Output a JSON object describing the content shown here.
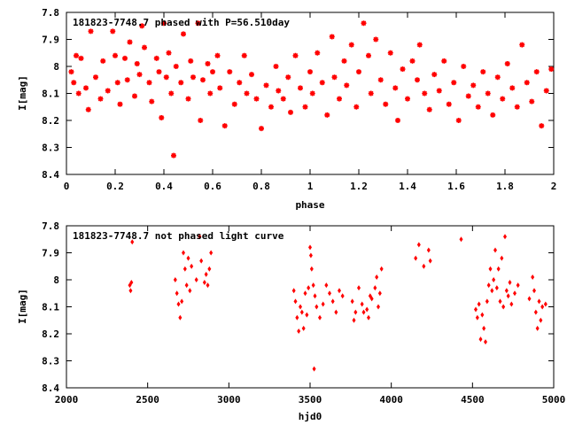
{
  "chart_data": [
    {
      "type": "scatter",
      "title": "181823-7748.7  phased with P=56.510day",
      "xlabel": "phase",
      "ylabel": "I[mag]",
      "xlim": [
        0,
        2
      ],
      "ylim": [
        7.8,
        8.4
      ],
      "y_inverted": true,
      "x_ticks": [
        "0",
        "0.2",
        "0.4",
        "0.6",
        "0.8",
        "1",
        "1.2",
        "1.4",
        "1.6",
        "1.8",
        "2"
      ],
      "y_ticks": [
        "7.8",
        "7.9",
        "8",
        "8.1",
        "8.2",
        "8.3",
        "8.4"
      ],
      "grid": false,
      "marker_color": "#ff0000",
      "series": [
        {
          "points": [
            [
              0.02,
              8.02
            ],
            [
              0.03,
              8.06
            ],
            [
              0.04,
              7.96
            ],
            [
              0.05,
              8.1
            ],
            [
              0.06,
              7.97
            ],
            [
              0.08,
              8.08
            ],
            [
              0.09,
              8.16
            ],
            [
              0.1,
              7.87
            ],
            [
              0.12,
              8.04
            ],
            [
              0.14,
              8.12
            ],
            [
              0.15,
              7.98
            ],
            [
              0.17,
              8.09
            ],
            [
              0.19,
              7.87
            ],
            [
              0.2,
              7.96
            ],
            [
              0.21,
              8.06
            ],
            [
              0.22,
              8.14
            ],
            [
              0.24,
              7.97
            ],
            [
              0.25,
              8.05
            ],
            [
              0.26,
              7.91
            ],
            [
              0.28,
              8.11
            ],
            [
              0.29,
              7.99
            ],
            [
              0.3,
              8.03
            ],
            [
              0.31,
              7.85
            ],
            [
              0.32,
              7.93
            ],
            [
              0.34,
              8.06
            ],
            [
              0.35,
              8.13
            ],
            [
              0.37,
              7.97
            ],
            [
              0.38,
              8.02
            ],
            [
              0.39,
              8.19
            ],
            [
              0.4,
              7.84
            ],
            [
              0.41,
              8.04
            ],
            [
              0.42,
              7.95
            ],
            [
              0.43,
              8.1
            ],
            [
              0.44,
              8.33
            ],
            [
              0.45,
              8.0
            ],
            [
              0.47,
              8.06
            ],
            [
              0.48,
              7.88
            ],
            [
              0.5,
              8.12
            ],
            [
              0.51,
              7.98
            ],
            [
              0.52,
              8.04
            ],
            [
              0.54,
              7.84
            ],
            [
              0.55,
              8.2
            ],
            [
              0.56,
              8.05
            ],
            [
              0.58,
              7.99
            ],
            [
              0.59,
              8.1
            ],
            [
              0.6,
              8.02
            ],
            [
              0.62,
              7.96
            ],
            [
              0.63,
              8.08
            ],
            [
              0.65,
              8.22
            ],
            [
              0.67,
              8.02
            ],
            [
              0.69,
              8.14
            ],
            [
              0.71,
              8.06
            ],
            [
              0.73,
              7.96
            ],
            [
              0.74,
              8.1
            ],
            [
              0.76,
              8.03
            ],
            [
              0.78,
              8.12
            ],
            [
              0.8,
              8.23
            ],
            [
              0.82,
              8.07
            ],
            [
              0.84,
              8.15
            ],
            [
              0.86,
              8.0
            ],
            [
              0.87,
              8.09
            ],
            [
              0.89,
              8.12
            ],
            [
              0.91,
              8.04
            ],
            [
              0.92,
              8.17
            ],
            [
              0.94,
              7.96
            ],
            [
              0.96,
              8.08
            ],
            [
              0.98,
              8.15
            ],
            [
              1.0,
              8.02
            ],
            [
              1.01,
              8.1
            ],
            [
              1.03,
              7.95
            ],
            [
              1.05,
              8.06
            ],
            [
              1.07,
              8.18
            ],
            [
              1.09,
              7.89
            ],
            [
              1.1,
              8.04
            ],
            [
              1.12,
              8.12
            ],
            [
              1.14,
              7.98
            ],
            [
              1.15,
              8.07
            ],
            [
              1.17,
              7.92
            ],
            [
              1.19,
              8.15
            ],
            [
              1.2,
              8.02
            ],
            [
              1.22,
              7.84
            ],
            [
              1.24,
              7.96
            ],
            [
              1.25,
              8.1
            ],
            [
              1.27,
              7.9
            ],
            [
              1.29,
              8.05
            ],
            [
              1.31,
              8.14
            ],
            [
              1.33,
              7.95
            ],
            [
              1.35,
              8.08
            ],
            [
              1.36,
              8.2
            ],
            [
              1.38,
              8.01
            ],
            [
              1.4,
              8.12
            ],
            [
              1.42,
              7.98
            ],
            [
              1.44,
              8.05
            ],
            [
              1.45,
              7.92
            ],
            [
              1.47,
              8.1
            ],
            [
              1.49,
              8.16
            ],
            [
              1.51,
              8.03
            ],
            [
              1.53,
              8.09
            ],
            [
              1.55,
              7.98
            ],
            [
              1.57,
              8.14
            ],
            [
              1.59,
              8.06
            ],
            [
              1.61,
              8.2
            ],
            [
              1.63,
              8.0
            ],
            [
              1.65,
              8.11
            ],
            [
              1.67,
              8.07
            ],
            [
              1.69,
              8.15
            ],
            [
              1.71,
              8.02
            ],
            [
              1.73,
              8.1
            ],
            [
              1.75,
              8.18
            ],
            [
              1.77,
              8.04
            ],
            [
              1.79,
              8.12
            ],
            [
              1.81,
              7.99
            ],
            [
              1.83,
              8.08
            ],
            [
              1.85,
              8.15
            ],
            [
              1.87,
              7.92
            ],
            [
              1.89,
              8.06
            ],
            [
              1.91,
              8.13
            ],
            [
              1.93,
              8.02
            ],
            [
              1.95,
              8.22
            ],
            [
              1.97,
              8.09
            ],
            [
              1.99,
              8.01
            ]
          ]
        }
      ]
    },
    {
      "type": "scatter",
      "title": "181823-7748.7  not phased light curve",
      "xlabel": "hjd0",
      "ylabel": "I[mag]",
      "xlim": [
        2000,
        5000
      ],
      "ylim": [
        7.8,
        8.4
      ],
      "y_inverted": true,
      "x_ticks": [
        "2000",
        "2500",
        "3000",
        "3500",
        "4000",
        "4500",
        "5000"
      ],
      "y_ticks": [
        "7.8",
        "7.9",
        "8",
        "8.1",
        "8.2",
        "8.3",
        "8.4"
      ],
      "grid": false,
      "marker_color": "#ff0000",
      "series": [
        {
          "points": [
            [
              2390,
              8.02
            ],
            [
              2395,
              8.04
            ],
            [
              2400,
              8.01
            ],
            [
              2405,
              7.86
            ],
            [
              2670,
              8.0
            ],
            [
              2680,
              8.05
            ],
            [
              2690,
              8.09
            ],
            [
              2700,
              8.14
            ],
            [
              2710,
              8.08
            ],
            [
              2720,
              7.9
            ],
            [
              2730,
              7.96
            ],
            [
              2740,
              8.02
            ],
            [
              2750,
              7.92
            ],
            [
              2760,
              8.04
            ],
            [
              2770,
              7.95
            ],
            [
              2800,
              8.0
            ],
            [
              2820,
              7.84
            ],
            [
              2830,
              7.93
            ],
            [
              2850,
              8.01
            ],
            [
              2860,
              7.98
            ],
            [
              2870,
              8.02
            ],
            [
              2880,
              7.96
            ],
            [
              2890,
              7.9
            ],
            [
              3400,
              8.04
            ],
            [
              3410,
              8.08
            ],
            [
              3420,
              8.14
            ],
            [
              3430,
              8.19
            ],
            [
              3440,
              8.1
            ],
            [
              3450,
              8.12
            ],
            [
              3460,
              8.18
            ],
            [
              3470,
              8.05
            ],
            [
              3480,
              8.13
            ],
            [
              3490,
              8.03
            ],
            [
              3500,
              7.88
            ],
            [
              3505,
              7.91
            ],
            [
              3510,
              7.96
            ],
            [
              3520,
              8.02
            ],
            [
              3525,
              8.33
            ],
            [
              3530,
              8.06
            ],
            [
              3540,
              8.1
            ],
            [
              3560,
              8.14
            ],
            [
              3580,
              8.09
            ],
            [
              3600,
              8.02
            ],
            [
              3620,
              8.05
            ],
            [
              3640,
              8.08
            ],
            [
              3660,
              8.12
            ],
            [
              3680,
              8.04
            ],
            [
              3700,
              8.06
            ],
            [
              3760,
              8.08
            ],
            [
              3770,
              8.15
            ],
            [
              3780,
              8.12
            ],
            [
              3800,
              8.03
            ],
            [
              3820,
              8.09
            ],
            [
              3830,
              8.12
            ],
            [
              3850,
              8.11
            ],
            [
              3860,
              8.14
            ],
            [
              3870,
              8.06
            ],
            [
              3880,
              8.07
            ],
            [
              3900,
              8.03
            ],
            [
              3910,
              7.99
            ],
            [
              3920,
              8.1
            ],
            [
              3930,
              8.05
            ],
            [
              3940,
              7.96
            ],
            [
              4150,
              7.92
            ],
            [
              4170,
              7.87
            ],
            [
              4200,
              7.95
            ],
            [
              4230,
              7.89
            ],
            [
              4240,
              7.93
            ],
            [
              4430,
              7.85
            ],
            [
              4520,
              8.11
            ],
            [
              4530,
              8.14
            ],
            [
              4540,
              8.09
            ],
            [
              4550,
              8.22
            ],
            [
              4560,
              8.13
            ],
            [
              4570,
              8.18
            ],
            [
              4580,
              8.23
            ],
            [
              4590,
              8.08
            ],
            [
              4600,
              8.02
            ],
            [
              4610,
              7.96
            ],
            [
              4620,
              8.04
            ],
            [
              4630,
              8.0
            ],
            [
              4640,
              7.89
            ],
            [
              4650,
              8.03
            ],
            [
              4660,
              7.96
            ],
            [
              4670,
              8.08
            ],
            [
              4680,
              7.92
            ],
            [
              4690,
              8.1
            ],
            [
              4700,
              7.84
            ],
            [
              4710,
              8.04
            ],
            [
              4720,
              8.06
            ],
            [
              4730,
              8.01
            ],
            [
              4740,
              8.09
            ],
            [
              4760,
              8.05
            ],
            [
              4780,
              8.02
            ],
            [
              4850,
              8.07
            ],
            [
              4870,
              7.99
            ],
            [
              4880,
              8.04
            ],
            [
              4890,
              8.12
            ],
            [
              4900,
              8.18
            ],
            [
              4910,
              8.08
            ],
            [
              4920,
              8.15
            ],
            [
              4930,
              8.1
            ],
            [
              4950,
              8.09
            ]
          ]
        }
      ]
    }
  ]
}
